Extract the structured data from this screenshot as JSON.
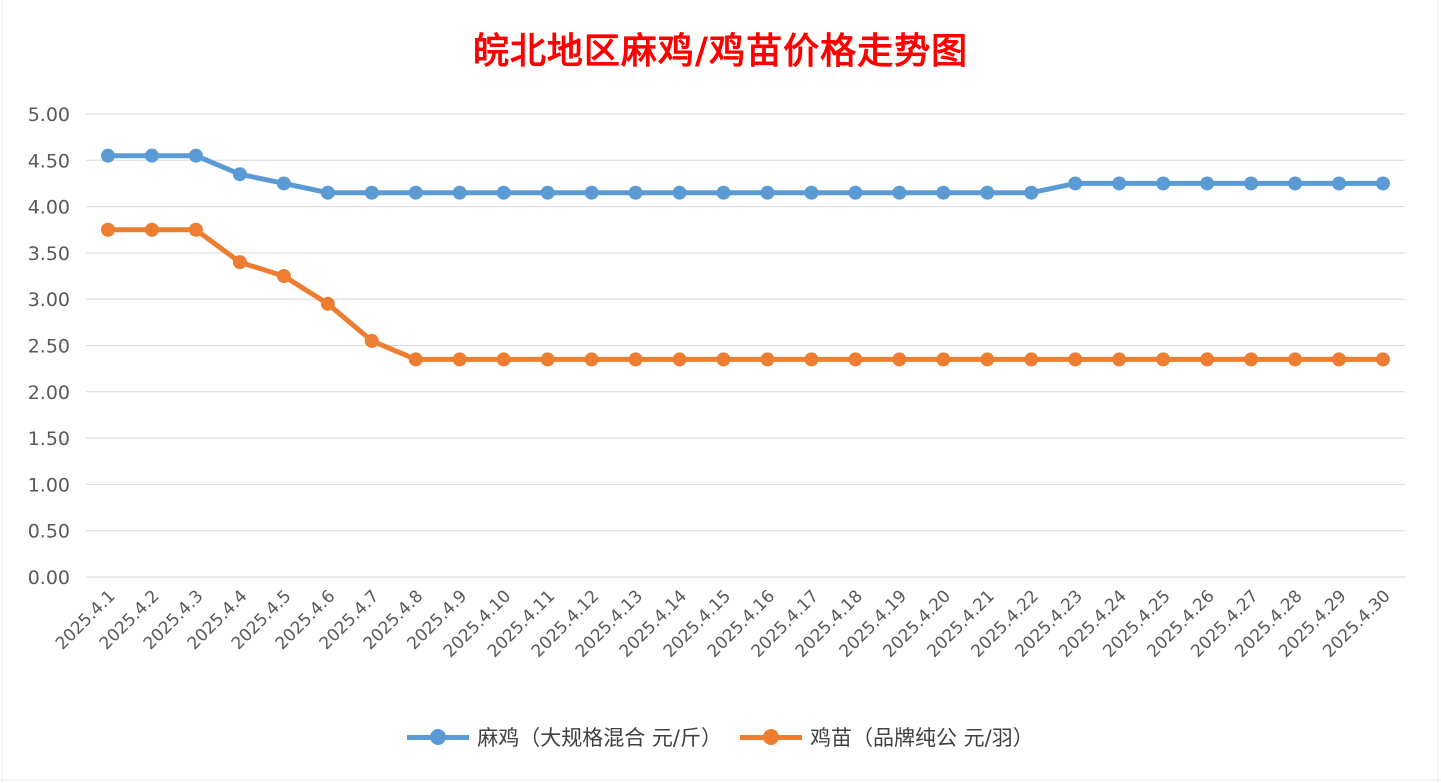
{
  "chart_data": {
    "type": "line",
    "title": "皖北地区麻鸡/鸡苗价格走势图",
    "xlabel": "",
    "ylabel": "",
    "ylim": [
      0,
      5
    ],
    "yticks": [
      "0.00",
      "0.50",
      "1.00",
      "1.50",
      "2.00",
      "2.50",
      "3.00",
      "3.50",
      "4.00",
      "4.50",
      "5.00"
    ],
    "grid": true,
    "legend_position": "bottom",
    "categories": [
      "2025.4.1",
      "2025.4.2",
      "2025.4.3",
      "2025.4.4",
      "2025.4.5",
      "2025.4.6",
      "2025.4.7",
      "2025.4.8",
      "2025.4.9",
      "2025.4.10",
      "2025.4.11",
      "2025.4.12",
      "2025.4.13",
      "2025.4.14",
      "2025.4.15",
      "2025.4.16",
      "2025.4.17",
      "2025.4.18",
      "2025.4.19",
      "2025.4.20",
      "2025.4.21",
      "2025.4.22",
      "2025.4.23",
      "2025.4.24",
      "2025.4.25",
      "2025.4.26",
      "2025.4.27",
      "2025.4.28",
      "2025.4.29",
      "2025.4.30"
    ],
    "series": [
      {
        "name": "麻鸡（大规格混合 元/斤）",
        "color": "#5b9bd5",
        "values": [
          4.55,
          4.55,
          4.55,
          4.35,
          4.25,
          4.15,
          4.15,
          4.15,
          4.15,
          4.15,
          4.15,
          4.15,
          4.15,
          4.15,
          4.15,
          4.15,
          4.15,
          4.15,
          4.15,
          4.15,
          4.15,
          4.15,
          4.25,
          4.25,
          4.25,
          4.25,
          4.25,
          4.25,
          4.25,
          4.25
        ]
      },
      {
        "name": "鸡苗（品牌纯公 元/羽）",
        "color": "#ed7d31",
        "values": [
          3.75,
          3.75,
          3.75,
          3.4,
          3.25,
          2.95,
          2.55,
          2.35,
          2.35,
          2.35,
          2.35,
          2.35,
          2.35,
          2.35,
          2.35,
          2.35,
          2.35,
          2.35,
          2.35,
          2.35,
          2.35,
          2.35,
          2.35,
          2.35,
          2.35,
          2.35,
          2.35,
          2.35,
          2.35,
          2.35
        ]
      }
    ]
  }
}
